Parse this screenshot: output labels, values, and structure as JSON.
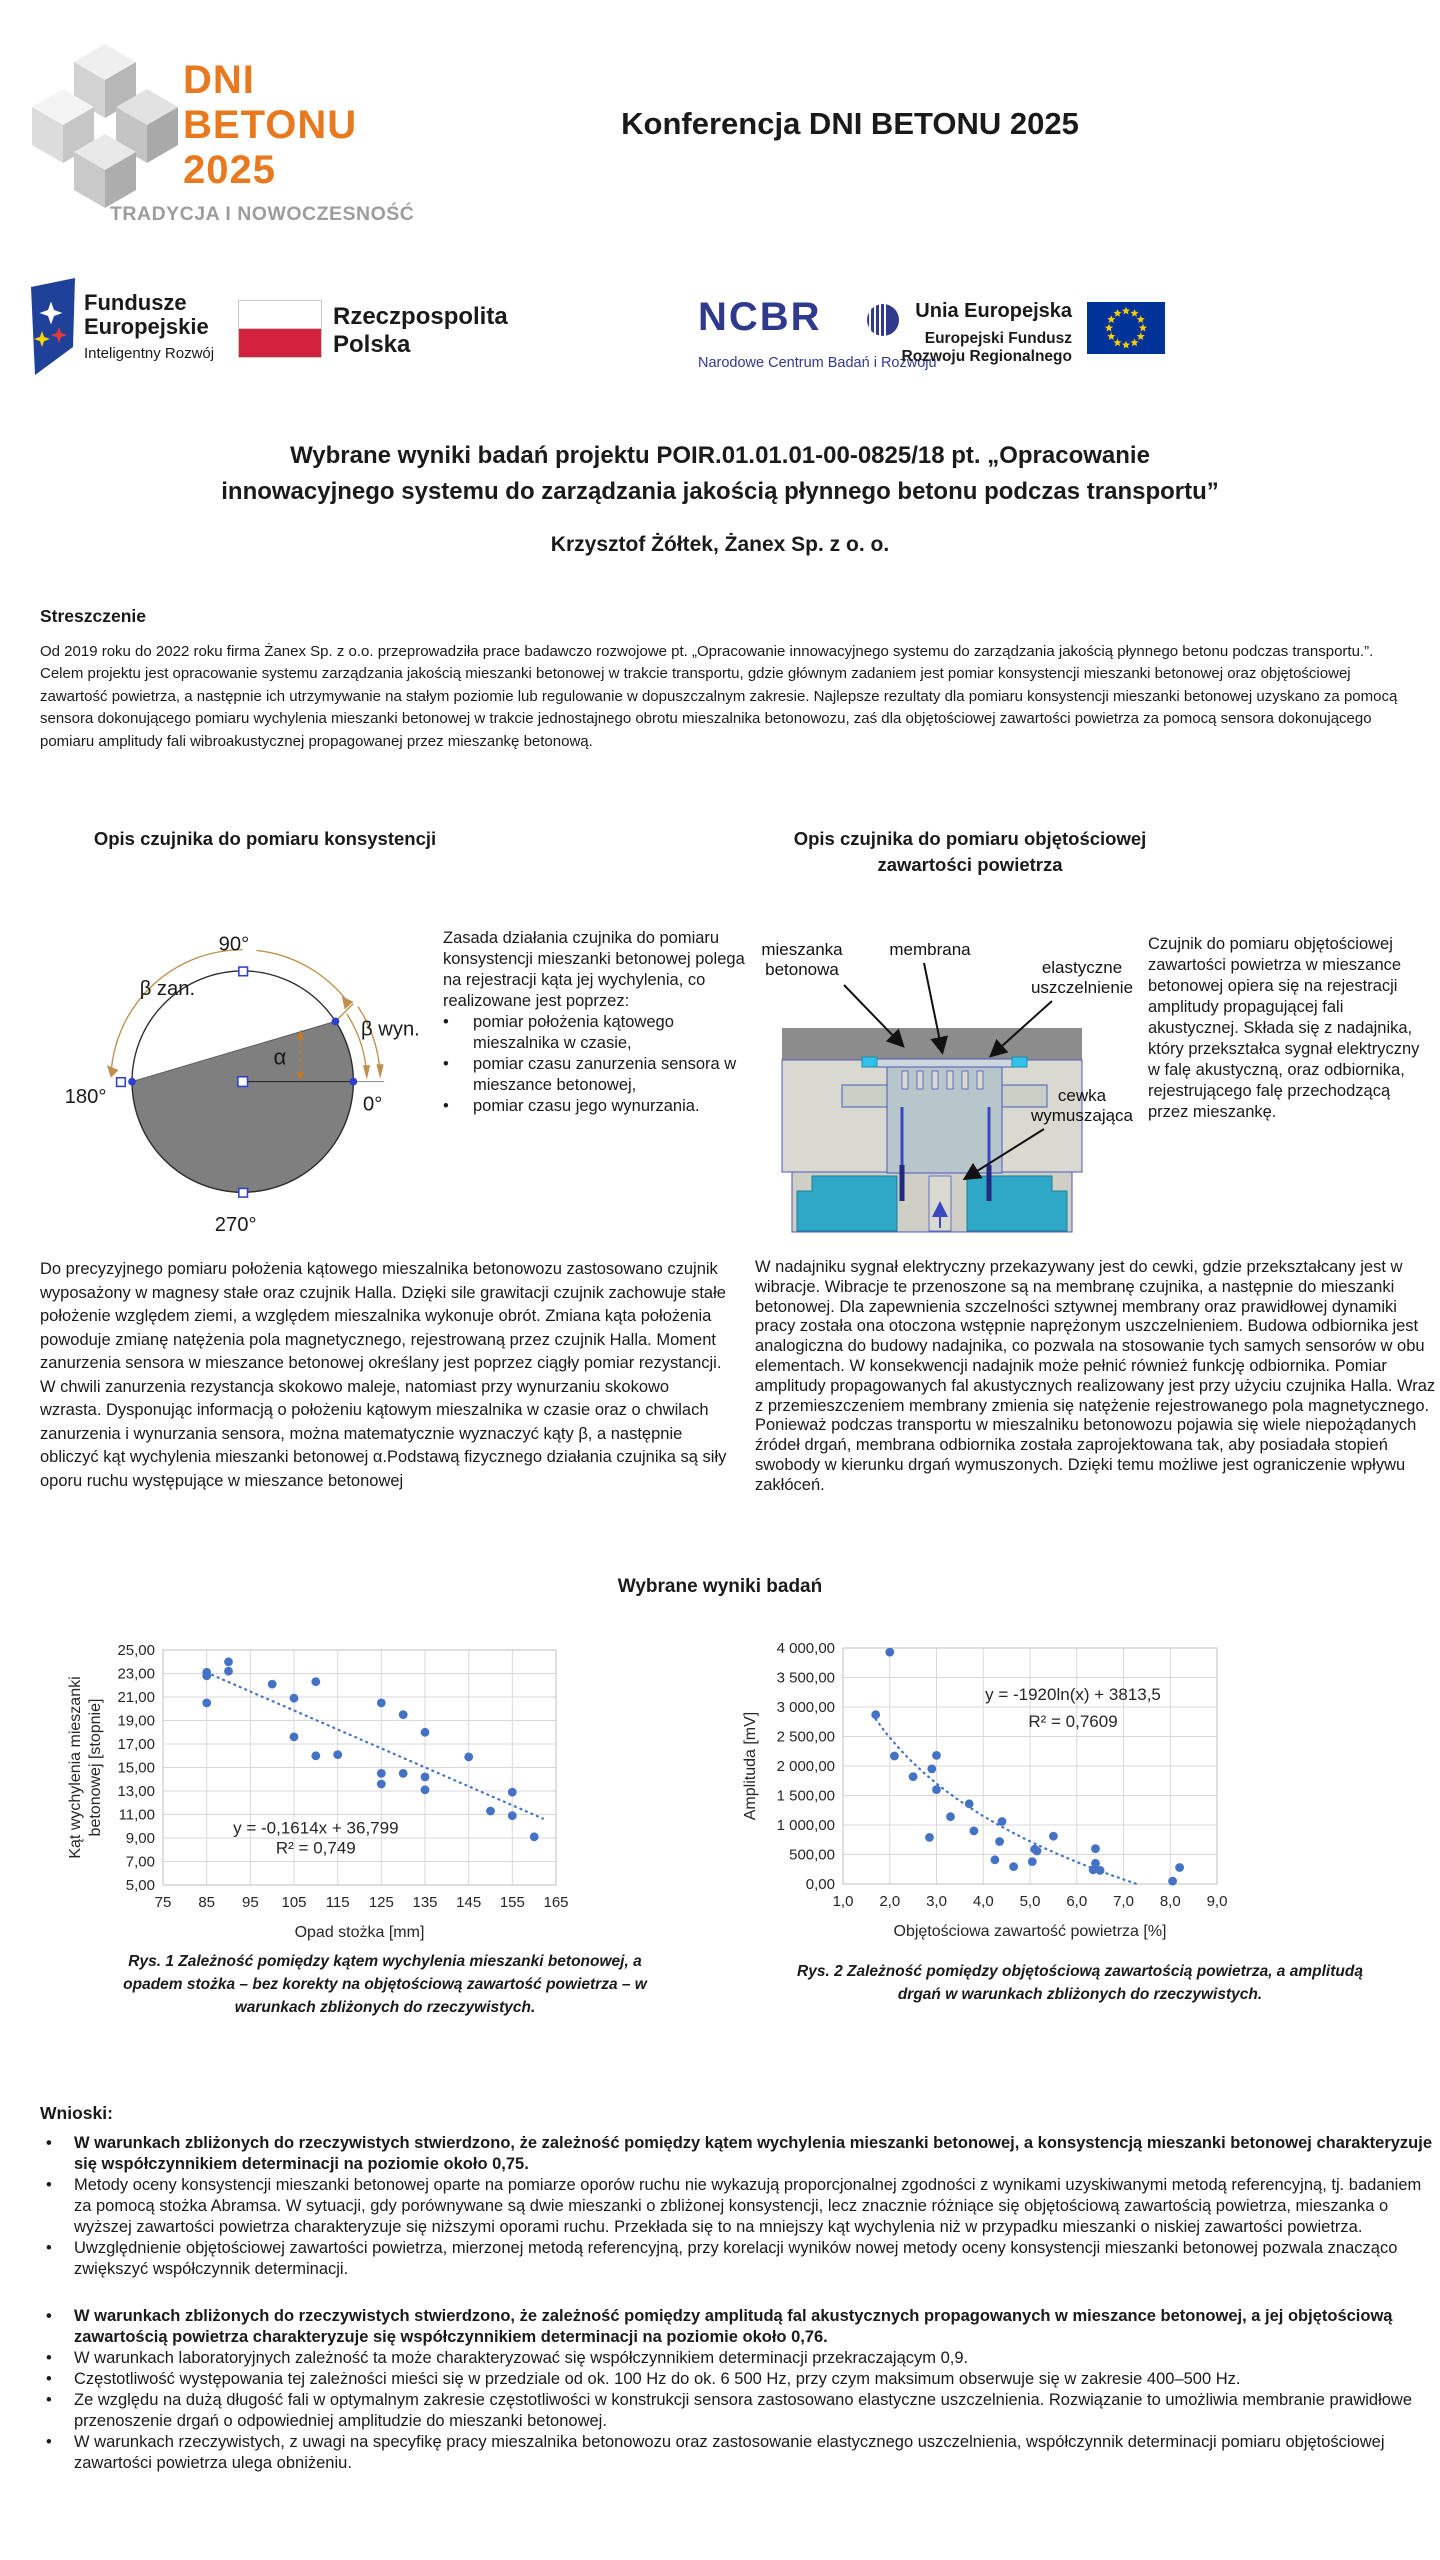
{
  "header": {
    "conference_title": "Konferencja DNI BETONU 2025",
    "logo": {
      "line1": "DNI",
      "line2": "BETONU",
      "line3": "2025",
      "tagline": "TRADYCJA I NOWOCZESNOŚĆ",
      "orange": "#E8791F",
      "gray": "#9D9D9C"
    }
  },
  "logos": {
    "fundusze": {
      "line1": "Fundusze",
      "line2": "Europejskie",
      "sub": "Inteligentny Rozwój"
    },
    "poland": {
      "line1": "Rzeczpospolita",
      "line2": "Polska"
    },
    "ncbr": {
      "name": "NCBR",
      "sub": "Narodowe Centrum Badań i Rozwoju"
    },
    "eu": {
      "line1": "Unia Europejska",
      "line2": "Europejski Fundusz",
      "line3": "Rozwoju Regionalnego"
    }
  },
  "title": {
    "line1": "Wybrane wyniki badań projektu POIR.01.01.01-00-0825/18 pt. „Opracowanie",
    "line2": "innowacyjnego systemu do zarządzania jakością płynnego betonu podczas transportu”"
  },
  "author": "Krzysztof Żółtek, Żanex Sp. z o. o.",
  "abstract": {
    "heading": "Streszczenie",
    "text": "Od 2019 roku do 2022 roku firma Żanex Sp. z o.o. przeprowadziła prace badawczo rozwojowe pt. „Opracowanie innowacyjnego systemu do zarządzania jakością płynnego betonu podczas transportu.”. Celem projektu jest opracowanie systemu zarządzania jakością mieszanki betonowej w trakcie transportu, gdzie głównym zadaniem jest pomiar konsystencji mieszanki betonowej oraz objętościowej zawartość powietrza, a następnie ich utrzymywanie na stałym poziomie lub regulowanie w dopuszczalnym zakresie. Najlepsze rezultaty dla pomiaru konsystencji mieszanki betonowej uzyskano za pomocą sensora dokonującego pomiaru wychylenia mieszanki betonowej w trakcie jednostajnego obrotu mieszalnika betonowozu, zaś dla objętościowej zawartości powietrza za pomocą sensora dokonującego pomiaru amplitudy fali wibroakustycznej propagowanej przez mieszankę betonową."
  },
  "sensor_left": {
    "heading": "Opis czujnika do pomiaru konsystencji",
    "intro": "Zasada działania czujnika do pomiaru konsystencji mieszanki betonowej polega na rejestracji kąta jej wychylenia, co realizowane jest poprzez:",
    "bullets": [
      "pomiar położenia kątowego mieszalnika w czasie,",
      "pomiar czasu zanurzenia sensora w mieszance betonowej,",
      "pomiar czasu jego wynurzania."
    ],
    "labels": {
      "beta_zan": "β zan.",
      "deg90": "90°",
      "beta_wyn": "β wyn.",
      "alpha": "α",
      "deg180": "180°",
      "deg0": "0°",
      "deg270": "270°"
    },
    "body": "Do precyzyjnego pomiaru położenia kątowego mieszalnika betonowozu zastosowano czujnik wyposażony w magnesy stałe oraz czujnik Halla. Dzięki sile grawitacji czujnik zachowuje stałe położenie względem ziemi, a względem mieszalnika wykonuje obrót. Zmiana kąta położenia powoduje zmianę natężenia pola magnetycznego, rejestrowaną przez czujnik Halla. Moment zanurzenia sensora w mieszance betonowej określany jest poprzez ciągły pomiar rezystancji. W chwili zanurzenia rezystancja skokowo maleje, natomiast przy wynurzaniu skokowo wzrasta. Dysponując informacją o położeniu kątowym mieszalnika w czasie oraz o chwilach zanurzenia i wynurzania sensora, można matematycznie wyznaczyć kąty β, a następnie obliczyć kąt wychylenia mieszanki betonowej α.Podstawą fizycznego działania czujnika są siły oporu ruchu występujące w mieszance betonowej"
  },
  "sensor_right": {
    "heading": "Opis czujnika do pomiaru objętościowej zawartości powietrza",
    "desc": "Czujnik do pomiaru objętościowej zawartości powietrza w mieszance betonowej opiera się na rejestracji amplitudy propagującej fali akustycznej. Składa się z nadajnika, który przekształca sygnał elektryczny w falę akustyczną, oraz odbiornika, rejestrującego falę przechodzącą przez mieszankę.",
    "labels": {
      "mix1": "mieszanka",
      "mix2": "betonowa",
      "membrane": "membrana",
      "seal1": "elastyczne",
      "seal2": "uszczelnienie",
      "coil1": "cewka",
      "coil2": "wymuszająca"
    },
    "body": "W nadajniku sygnał elektryczny przekazywany jest do cewki, gdzie przekształcany jest w wibracje. Wibracje te przenoszone są na membranę czujnika, a następnie do mieszanki betonowej. Dla zapewnienia szczelności sztywnej membrany oraz prawidłowej dynamiki pracy została ona otoczona wstępnie naprężonym uszczelnieniem. Budowa odbiornika jest analogiczna do budowy nadajnika, co pozwala na stosowanie tych samych sensorów w obu elementach. W konsekwencji nadajnik może pełnić również funkcję odbiornika. Pomiar amplitudy propagowanych fal akustycznych realizowany jest przy użyciu czujnika Halla. Wraz z przemieszczeniem membrany zmienia się natężenie rejestrowanego pola magnetycznego. Ponieważ podczas transportu w mieszalniku betonowozu pojawia się wiele niepożądanych źródeł drgań, membrana odbiornika została zaprojektowana tak, aby posiadała stopień swobody w kierunku drgań wymuszonych. Dzięki temu możliwe jest ograniczenie wpływu zakłóceń."
  },
  "results_heading": "Wybrane wyniki badań",
  "fig1_caption": "Rys. 1 Zależność pomiędzy kątem wychylenia mieszanki betonowej, a opadem stożka – bez korekty na objętościową zawartość powietrza – w warunkach zbliżonych do rzeczywistych.",
  "fig2_caption": "Rys. 2 Zależność pomiędzy objętościową zawartością powietrza, a amplitudą drgań w warunkach zbliżonych do rzeczywistych.",
  "conclusions": {
    "heading": "Wnioski:",
    "items": [
      {
        "bold": true,
        "gap": false,
        "text": "W warunkach zbliżonych do rzeczywistych stwierdzono, że zależność pomiędzy kątem wychylenia mieszanki betonowej, a konsystencją mieszanki betonowej charakteryzuje się współczynnikiem determinacji na poziomie około 0,75."
      },
      {
        "bold": false,
        "gap": false,
        "text": "Metody oceny konsystencji mieszanki betonowej oparte na pomiarze oporów ruchu nie wykazują proporcjonalnej zgodności z wynikami uzyskiwanymi metodą referencyjną, tj. badaniem za pomocą stożka Abramsa. W sytuacji, gdy porównywane są dwie mieszanki o zbliżonej konsystencji, lecz znacznie różniące się objętościową zawartością powietrza, mieszanka o wyższej zawartości powietrza charakteryzuje się niższymi oporami ruchu. Przekłada się to na mniejszy kąt wychylenia niż w przypadku mieszanki o niskiej zawartości powietrza."
      },
      {
        "bold": false,
        "gap": false,
        "text": "Uwzględnienie objętościowej zawartości powietrza, mierzonej metodą referencyjną, przy korelacji wyników nowej metody oceny konsystencji mieszanki betonowej pozwala znacząco zwiększyć współczynnik determinacji."
      },
      {
        "bold": true,
        "gap": true,
        "text": "W warunkach zbliżonych do rzeczywistych stwierdzono, że zależność pomiędzy amplitudą fal akustycznych propagowanych w mieszance betonowej, a jej objętościową zawartością powietrza charakteryzuje się współczynnikiem determinacji na poziomie około 0,76."
      },
      {
        "bold": false,
        "gap": false,
        "text": "W warunkach laboratoryjnych zależność ta może charakteryzować się współczynnikiem determinacji przekraczającym 0,9."
      },
      {
        "bold": false,
        "gap": false,
        "text": "Częstotliwość występowania tej zależności mieści się w przedziale od ok. 100 Hz do ok. 6 500 Hz, przy czym maksimum obserwuje się w zakresie 400–500 Hz."
      },
      {
        "bold": false,
        "gap": false,
        "text": "Ze względu na dużą długość fali w optymalnym zakresie częstotliwości w konstrukcji sensora zastosowano elastyczne uszczelnienia. Rozwiązanie to umożliwia membranie prawidłowe przenoszenie drgań o odpowiedniej amplitudzie do mieszanki betonowej."
      },
      {
        "bold": false,
        "gap": false,
        "text": "W warunkach rzeczywistych, z uwagi na specyfikę pracy mieszalnika betonowozu oraz zastosowanie elastycznego uszczelnienia, współczynnik determinacji pomiaru objętościowej zawartości powietrza ulega obniżeniu."
      }
    ]
  },
  "chart_data": [
    {
      "type": "scatter",
      "xlabel": "Opad stożka [mm]",
      "ylabel_lines": [
        "Kąt wychylenia mieszanki",
        "betonowej [stopnie]"
      ],
      "xlim": [
        75,
        165
      ],
      "ylim": [
        5,
        25
      ],
      "xticks": [
        75,
        85,
        95,
        105,
        115,
        125,
        135,
        145,
        155,
        165
      ],
      "xtick_labels": [
        "75",
        "85",
        "95",
        "105",
        "115",
        "125",
        "135",
        "145",
        "155",
        "165"
      ],
      "yticks": [
        5,
        7,
        9,
        11,
        13,
        15,
        17,
        19,
        21,
        23,
        25
      ],
      "ytick_labels": [
        "5,00",
        "7,00",
        "9,00",
        "11,00",
        "13,00",
        "15,00",
        "17,00",
        "19,00",
        "21,00",
        "23,00",
        "25,00"
      ],
      "points": [
        [
          85,
          23.1
        ],
        [
          85,
          22.8
        ],
        [
          85,
          20.5
        ],
        [
          90,
          24.0
        ],
        [
          90,
          23.2
        ],
        [
          100,
          22.1
        ],
        [
          105,
          20.9
        ],
        [
          105,
          17.6
        ],
        [
          110,
          22.3
        ],
        [
          110,
          16.0
        ],
        [
          115,
          16.1
        ],
        [
          125,
          20.5
        ],
        [
          125,
          14.5
        ],
        [
          125,
          13.6
        ],
        [
          130,
          19.5
        ],
        [
          130,
          14.5
        ],
        [
          135,
          18.0
        ],
        [
          135,
          14.2
        ],
        [
          135,
          13.1
        ],
        [
          145,
          15.9
        ],
        [
          150,
          11.3
        ],
        [
          155,
          12.9
        ],
        [
          155,
          10.9
        ],
        [
          160,
          9.1
        ]
      ],
      "point_color": "#4472C4",
      "grid_color": "#d9d9d9",
      "trend": {
        "type": "linear",
        "slope": -0.1614,
        "intercept": 36.799,
        "x_start": 85,
        "x_end": 162,
        "label": "y = -0,1614x + 36,799",
        "r2": "R² = 0,749",
        "anchor_eq": {
          "x": 110,
          "y": 9.4
        },
        "anchor_r2": {
          "x": 110,
          "y": 7.7
        }
      }
    },
    {
      "type": "scatter",
      "xlabel": "Objętościowa zawartość powietrza [%]",
      "ylabel_lines": [
        "Amplituda [mV]"
      ],
      "xlim": [
        1,
        9
      ],
      "ylim": [
        0,
        4000
      ],
      "xticks": [
        1,
        2,
        3,
        4,
        5,
        6,
        7,
        8,
        9
      ],
      "xtick_labels": [
        "1,0",
        "2,0",
        "3,0",
        "4,0",
        "5,0",
        "6,0",
        "7,0",
        "8,0",
        "9,0"
      ],
      "yticks": [
        0,
        500,
        1000,
        1500,
        2000,
        2500,
        3000,
        3500,
        4000
      ],
      "ytick_labels": [
        "0,00",
        "500,00",
        "1 000,00",
        "1 500,00",
        "2 000,00",
        "2 500,00",
        "3 000,00",
        "3 500,00",
        "4 000,00"
      ],
      "points": [
        [
          2.0,
          3930
        ],
        [
          1.7,
          2870
        ],
        [
          2.1,
          2170
        ],
        [
          3.0,
          2180
        ],
        [
          2.9,
          1950
        ],
        [
          2.5,
          1820
        ],
        [
          3.0,
          1600
        ],
        [
          3.7,
          1360
        ],
        [
          3.3,
          1140
        ],
        [
          4.4,
          1060
        ],
        [
          3.8,
          900
        ],
        [
          2.85,
          790
        ],
        [
          5.5,
          810
        ],
        [
          4.35,
          720
        ],
        [
          6.4,
          600
        ],
        [
          5.1,
          590
        ],
        [
          5.15,
          560
        ],
        [
          4.25,
          410
        ],
        [
          5.05,
          380
        ],
        [
          6.4,
          350
        ],
        [
          4.65,
          295
        ],
        [
          6.35,
          240
        ],
        [
          6.5,
          230
        ],
        [
          8.2,
          280
        ],
        [
          8.05,
          50
        ]
      ],
      "point_color": "#4472C4",
      "grid_color": "#d9d9d9",
      "trend": {
        "type": "log",
        "a": -1920,
        "b": 3813.5,
        "x_start": 1.7,
        "x_end": 7.32,
        "label": "y = -1920ln(x) + 3813,5",
        "r2": "R² = 0,7609",
        "anchor_eq": {
          "x": 5.92,
          "y": 3119
        },
        "anchor_r2": {
          "x": 5.92,
          "y": 2660
        }
      }
    }
  ]
}
